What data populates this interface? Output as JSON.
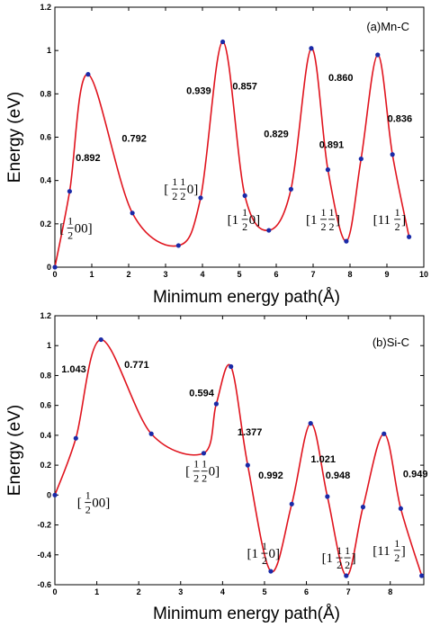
{
  "chart_data": [
    {
      "type": "line",
      "panel_label": "(a)Mn-C",
      "xlabel": "Minimum energy path(Å)",
      "ylabel": "Energy (eV)",
      "xlim": [
        0,
        10
      ],
      "ylim": [
        0,
        1.2
      ],
      "xticks": [
        "0",
        "1",
        "2",
        "3",
        "4",
        "5",
        "6",
        "7",
        "8",
        "9",
        "10"
      ],
      "yticks": [
        "0",
        "0.2",
        "0.4",
        "0.6",
        "0.8",
        "1",
        "1.2"
      ],
      "curve_color": "#e0141e",
      "marker_color": "#1a2aa8",
      "x": [
        0.0,
        0.4,
        0.9,
        2.1,
        3.35,
        3.95,
        4.55,
        5.15,
        5.8,
        6.4,
        6.95,
        7.4,
        7.9,
        8.3,
        8.75,
        9.15,
        9.6
      ],
      "y": [
        0.0,
        0.35,
        0.89,
        0.25,
        0.1,
        0.32,
        1.04,
        0.33,
        0.17,
        0.36,
        1.01,
        0.45,
        0.12,
        0.5,
        0.98,
        0.52,
        0.14
      ],
      "barrier_labels": [
        {
          "text": "0.892",
          "x": 0.9,
          "y": 0.49
        },
        {
          "text": "0.792",
          "x": 2.15,
          "y": 0.58
        },
        {
          "text": "0.939",
          "x": 3.9,
          "y": 0.8
        },
        {
          "text": "0.857",
          "x": 5.15,
          "y": 0.82
        },
        {
          "text": "0.829",
          "x": 6.0,
          "y": 0.6
        },
        {
          "text": "0.891",
          "x": 7.5,
          "y": 0.55
        },
        {
          "text": "0.860",
          "x": 7.75,
          "y": 0.86
        },
        {
          "text": "0.836",
          "x": 9.35,
          "y": 0.67
        }
      ],
      "site_labels": [
        {
          "pre": "[",
          "fracs": [
            "1/2"
          ],
          "post": "00]",
          "x": 0.6,
          "y": 0.16
        },
        {
          "pre": "[",
          "fracs": [
            "1/2",
            "1/2"
          ],
          "post": "0]",
          "x": 3.45,
          "y": 0.34
        },
        {
          "pre": "[1",
          "fracs": [
            "1/2"
          ],
          "post": "0]",
          "x": 5.15,
          "y": 0.2
        },
        {
          "pre": "[1",
          "fracs": [
            "1/2",
            "1/2"
          ],
          "post": "]",
          "x": 7.3,
          "y": 0.2
        },
        {
          "pre": "[11",
          "fracs": [
            "1/2"
          ],
          "post": "]",
          "x": 9.1,
          "y": 0.2
        }
      ]
    },
    {
      "type": "line",
      "panel_label": "(b)Si-C",
      "xlabel": "Minimum energy path(Å)",
      "ylabel": "Energy (eV)",
      "xlim": [
        0,
        8.8
      ],
      "ylim": [
        -0.6,
        1.2
      ],
      "xticks": [
        "0",
        "1",
        "2",
        "3",
        "4",
        "5",
        "6",
        "7",
        "8"
      ],
      "yticks": [
        "-0.6",
        "-0.4",
        "-0.2",
        "0",
        "0.2",
        "0.4",
        "0.6",
        "0.8",
        "1",
        "1.2"
      ],
      "curve_color": "#e0141e",
      "marker_color": "#1a2aa8",
      "x": [
        0.0,
        0.5,
        1.1,
        2.3,
        3.55,
        3.85,
        4.2,
        4.6,
        5.15,
        5.65,
        6.1,
        6.5,
        6.95,
        7.35,
        7.85,
        8.25,
        8.75
      ],
      "y": [
        0.0,
        0.38,
        1.04,
        0.41,
        0.28,
        0.61,
        0.86,
        0.2,
        -0.51,
        -0.06,
        0.48,
        -0.01,
        -0.54,
        -0.08,
        0.41,
        -0.09,
        -0.54
      ],
      "barrier_labels": [
        {
          "text": "1.043",
          "x": 0.45,
          "y": 0.82
        },
        {
          "text": "0.771",
          "x": 1.95,
          "y": 0.85
        },
        {
          "text": "0.594",
          "x": 3.5,
          "y": 0.66
        },
        {
          "text": "1.377",
          "x": 4.65,
          "y": 0.4
        },
        {
          "text": "0.992",
          "x": 5.15,
          "y": 0.11
        },
        {
          "text": "1.021",
          "x": 6.4,
          "y": 0.22
        },
        {
          "text": "0.948",
          "x": 6.75,
          "y": 0.11
        },
        {
          "text": "0.949",
          "x": 8.6,
          "y": 0.12
        }
      ],
      "site_labels": [
        {
          "pre": "[",
          "fracs": [
            "1/2"
          ],
          "post": "00]",
          "x": 0.95,
          "y": -0.08
        },
        {
          "pre": "[",
          "fracs": [
            "1/2",
            "1/2"
          ],
          "post": "0]",
          "x": 3.55,
          "y": 0.13
        },
        {
          "pre": "[1",
          "fracs": [
            "1/2"
          ],
          "post": "0]",
          "x": 5.0,
          "y": -0.42
        },
        {
          "pre": "[1",
          "fracs": [
            "1/2",
            "1/2"
          ],
          "post": "]",
          "x": 6.8,
          "y": -0.45
        },
        {
          "pre": "[11",
          "fracs": [
            "1/2"
          ],
          "post": "]",
          "x": 8.0,
          "y": -0.4
        }
      ]
    }
  ]
}
